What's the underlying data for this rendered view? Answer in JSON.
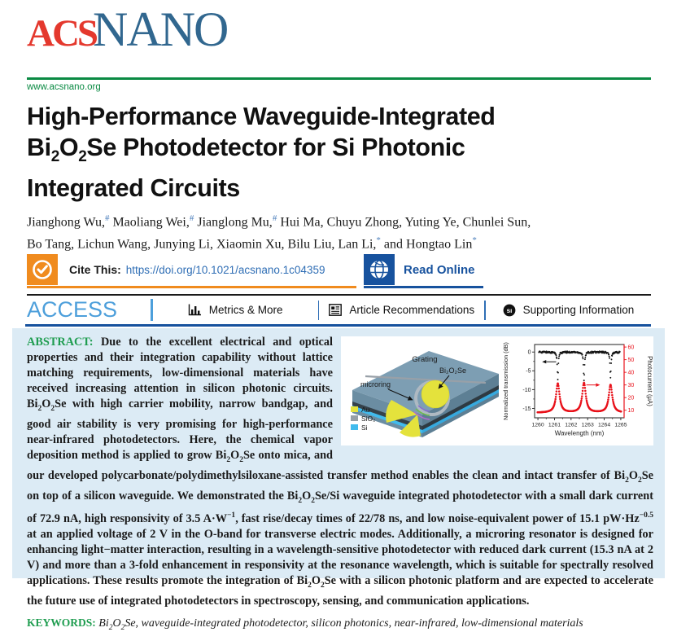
{
  "journal": {
    "logo_acs": "ACS",
    "logo_nano": "NANO",
    "website": "www.acsnano.org"
  },
  "article": {
    "title_lines": [
      "High-Performance Waveguide-Integrated",
      "Bi<sub>2</sub>O<sub>2</sub>Se Photodetector for Si Photonic",
      "Integrated Circuits"
    ],
    "authors_html": "Jianghong Wu,<sup>#</sup> Maoliang Wei,<sup>#</sup> Jianglong Mu,<sup>#</sup> Hui Ma, Chuyu Zhong, Yuting Ye, Chunlei Sun,<br>Bo Tang, Lichun Wang, Junying Li, Xiaomin Xu, Bilu Liu, Lan Li,<sup>*</sup> and Hongtao Lin<sup>*</sup>"
  },
  "cite_bar": {
    "cite_label": "Cite This:",
    "doi": "https://doi.org/10.1021/acsnano.1c04359",
    "read_online": "Read Online"
  },
  "access_bar": {
    "access": "ACCESS",
    "items": [
      {
        "label": "Metrics & More"
      },
      {
        "label": "Article Recommendations"
      },
      {
        "label": "Supporting Information"
      }
    ],
    "si_badge": "sı"
  },
  "abstract": {
    "heading": "ABSTRACT:",
    "text_html": "Due to the excellent electrical and optical properties and their integration capability without lattice matching requirements, low-dimensional materials have received increasing attention in silicon photonic circuits. Bi<sub>2</sub>O<sub>2</sub>Se with high carrier mobility, narrow bandgap, and good air stability is very promising for high-performance near-infrared photodetectors. Here, the chemical vapor deposition method is applied to grow Bi<sub>2</sub>O<sub>2</sub>Se onto mica, and our developed polycarbonate/polydimethylsiloxane-assisted transfer method enables the clean and intact transfer of Bi<sub>2</sub>O<sub>2</sub>Se on top of a silicon waveguide. We demonstrated the Bi<sub>2</sub>O<sub>2</sub>Se/Si waveguide integrated photodetector with a small dark current of 72.9 nA, high responsivity of 3.5 A·W<sup>−1</sup>, fast rise/decay times of 22/78 ns, and low noise-equivalent power of 15.1 pW·Hz<sup>−0.5</sup> at an applied voltage of 2 V in the O-band for transverse electric modes. Additionally, a microring resonator is designed for enhancing light−matter interaction, resulting in a wavelength-sensitive photodetector with reduced dark current (15.3 nA at 2 V) and more than a 3-fold enhancement in responsivity at the resonance wavelength, which is suitable for spectrally resolved applications. These results promote the integration of Bi<sub>2</sub>O<sub>2</sub>Se with a silicon photonic platform and are expected to accelerate the future use of integrated photodetectors in spectroscopy, sensing, and communication applications.",
    "keywords_label": "KEYWORDS:",
    "keywords_html": "Bi<sub>2</sub>O<sub>2</sub>Se, waveguide-integrated photodetector, silicon photonics, near-infrared, low-dimensional materials"
  },
  "figure": {
    "schematic": {
      "grating_label": "Grating",
      "material_label": "Bi₂O₂Se",
      "microring_label": "microring",
      "legend": [
        {
          "color": "#e4e23c",
          "label": "Au"
        },
        {
          "color": "#97a0a6",
          "label": "SiO₂"
        },
        {
          "color": "#41bbed",
          "label": "Si"
        }
      ]
    }
  },
  "chart_data": {
    "type": "line",
    "title": "",
    "xlabel": "Wavelength (nm)",
    "ylabel_left": "Normalized transmission (dB)",
    "ylabel_right": "Photocurrent (μA)",
    "xlim": [
      1259.8,
      1265.2
    ],
    "xticks": [
      1260,
      1261,
      1262,
      1263,
      1264,
      1265
    ],
    "yticks_left": [
      0,
      -5,
      -10,
      -15
    ],
    "ylim_left": [
      -17.5,
      2
    ],
    "yticks_right": [
      10,
      20,
      30,
      40,
      50,
      60
    ],
    "ylim_right": [
      4,
      62
    ],
    "grid": false,
    "legend_position": "none",
    "resonance_wavelengths_nm": [
      1261.2,
      1262.78,
      1264.38
    ],
    "series": [
      {
        "name": "Normalized transmission",
        "axis": "left",
        "color": "#161616",
        "baseline_db": 0,
        "dip_depths_db": [
          7.3,
          7.7,
          7.0
        ],
        "linewidth_nm": 0.035
      },
      {
        "name": "Photocurrent",
        "axis": "right",
        "color": "#e8111a",
        "baseline_ua": 8,
        "peak_heights_ua": [
          31,
          31.5,
          30
        ],
        "linewidth_nm": 0.13
      }
    ]
  }
}
